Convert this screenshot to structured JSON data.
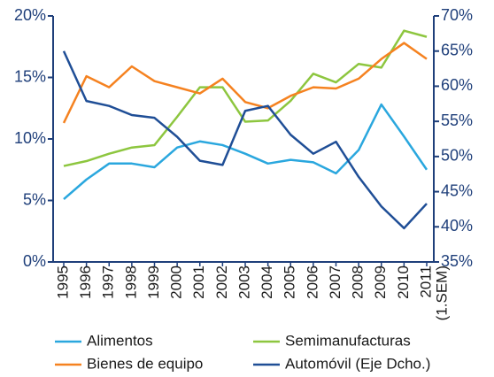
{
  "chart_data": {
    "type": "line",
    "categories": [
      "1995",
      "1996",
      "1997",
      "1998",
      "1999",
      "2000",
      "2001",
      "2002",
      "2003",
      "2004",
      "2005",
      "2006",
      "2007",
      "2008",
      "2009",
      "2010",
      "2011"
    ],
    "category_note": "(1.SEM)",
    "ylim": [
      0,
      20
    ],
    "yticks": [
      {
        "value": 0,
        "label": "0%"
      },
      {
        "value": 5,
        "label": "5%"
      },
      {
        "value": 10,
        "label": "10%"
      },
      {
        "value": 15,
        "label": "15%"
      },
      {
        "value": 20,
        "label": "20%"
      }
    ],
    "y2lim": [
      35,
      70
    ],
    "y2ticks": [
      {
        "value": 35,
        "label": "35%"
      },
      {
        "value": 40,
        "label": "40%"
      },
      {
        "value": 45,
        "label": "45%"
      },
      {
        "value": 50,
        "label": "50%"
      },
      {
        "value": 55,
        "label": "55%"
      },
      {
        "value": 60,
        "label": "60%"
      },
      {
        "value": 65,
        "label": "65%"
      },
      {
        "value": 70,
        "label": "70%"
      }
    ],
    "axis_color": "#1f3f7a",
    "series": [
      {
        "name": "Alimentos",
        "color": "#2aa7de",
        "values": [
          5.1,
          6.7,
          8.0,
          8.0,
          7.7,
          9.3,
          9.8,
          9.5,
          8.8,
          8.0,
          8.3,
          8.1,
          7.2,
          9.1,
          12.8,
          10.2,
          7.5
        ]
      },
      {
        "name": "Semimanufacturas",
        "color": "#8dc63f",
        "values": [
          7.8,
          8.2,
          8.8,
          9.3,
          9.5,
          11.8,
          14.2,
          14.2,
          11.4,
          11.5,
          13.1,
          15.3,
          14.6,
          16.1,
          15.8,
          18.8,
          18.3
        ]
      },
      {
        "name": "Bienes de equipo",
        "color": "#f58220",
        "values": [
          11.3,
          15.1,
          14.2,
          15.9,
          14.7,
          14.2,
          13.7,
          14.9,
          13.0,
          12.5,
          13.5,
          14.2,
          14.1,
          14.9,
          16.5,
          17.8,
          16.5
        ]
      },
      {
        "name": "Automóvil (Eje Dcho.)",
        "color": "#1f4e96",
        "axis": "y2",
        "values": [
          65.0,
          57.9,
          57.2,
          55.9,
          55.5,
          52.8,
          49.4,
          48.8,
          56.5,
          57.2,
          53.1,
          50.4,
          52.1,
          47.1,
          42.9,
          39.8,
          43.3
        ]
      }
    ]
  }
}
